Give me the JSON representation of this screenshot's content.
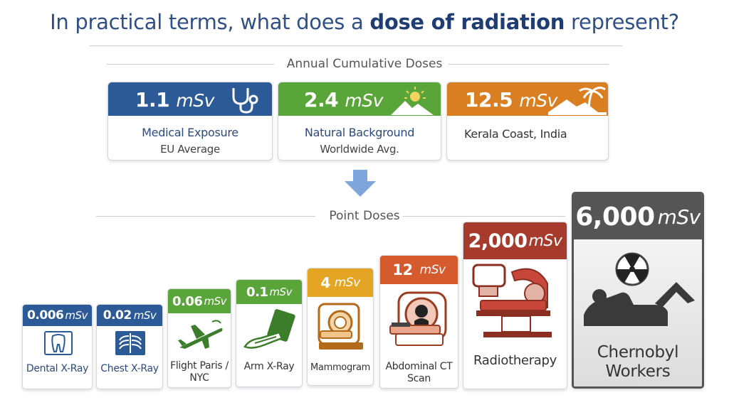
{
  "title": {
    "pre": "In practical terms, what does a ",
    "bold": "dose of radiation",
    "post": " represent?"
  },
  "annual_heading": "Annual Cumulative Doses",
  "point_heading": "Point Doses",
  "annual_cards": [
    {
      "value": "1.1",
      "unit": "mSv",
      "line1": "Medical Exposure",
      "line2": "EU Average",
      "color": "#2b5a96",
      "icon": "stethoscope-icon"
    },
    {
      "value": "2.4",
      "unit": "mSv",
      "line1": "Natural Background",
      "line2": "Worldwide Avg.",
      "color": "#5aa53a",
      "icon": "sun-mountain-icon"
    },
    {
      "value": "12.5",
      "unit": "mSv",
      "line1": "Kerala Coast, India",
      "line2": "",
      "color": "#d97f22",
      "icon": "palm-tree-icon"
    }
  ],
  "point_cards": [
    {
      "value": "0.006",
      "unit": "mSv",
      "label": "Dental X-Ray",
      "color": "#2b5a96",
      "icon": "tooth-icon"
    },
    {
      "value": "0.02",
      "unit": "mSv",
      "label": "Chest X-Ray",
      "color": "#2b5a96",
      "icon": "ribcage-icon"
    },
    {
      "value": "0.06",
      "unit": "mSv",
      "label": "Flight Paris / NYC",
      "color": "#5aa53a",
      "icon": "airplane-icon"
    },
    {
      "value": "0.1",
      "unit": "mSv",
      "label": "Arm X-Ray",
      "color": "#5aa53a",
      "icon": "arm-xray-icon"
    },
    {
      "value": "4",
      "unit": "mSv",
      "label": "Mammogram",
      "color": "#e3a523",
      "icon": "mammogram-machine-icon"
    },
    {
      "value": "12",
      "unit": "mSv",
      "label": "Abdominal CT Scan",
      "color": "#d55a2e",
      "icon": "ct-scanner-icon"
    },
    {
      "value": "2,000",
      "unit": "mSv",
      "label": "Radiotherapy",
      "color": "#a63a2c",
      "icon": "radiotherapy-machine-icon"
    },
    {
      "value": "6,000",
      "unit": "mSv",
      "label": "Chernobyl Workers",
      "color": "#555555",
      "icon": "radiation-hazard-icon"
    }
  ]
}
